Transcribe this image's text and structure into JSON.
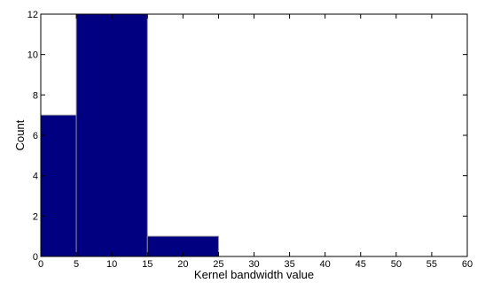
{
  "chart_data": {
    "type": "bar",
    "bins": [
      {
        "x0": 0,
        "x1": 5,
        "count": 7
      },
      {
        "x0": 5,
        "x1": 15,
        "count": 12
      },
      {
        "x0": 15,
        "x1": 25,
        "count": 1
      }
    ],
    "xlabel": "Kernel bandwidth value",
    "ylabel": "Count",
    "xlim": [
      0,
      60
    ],
    "ylim": [
      0,
      12
    ],
    "xticks": [
      "0",
      "5",
      "10",
      "15",
      "20",
      "25",
      "30",
      "35",
      "40",
      "45",
      "50",
      "55",
      "60"
    ],
    "yticks": [
      "0",
      "2",
      "4",
      "6",
      "8",
      "10",
      "12"
    ],
    "grid": false,
    "bar_color": "#000080",
    "edge_color": "#8a8a9a"
  }
}
